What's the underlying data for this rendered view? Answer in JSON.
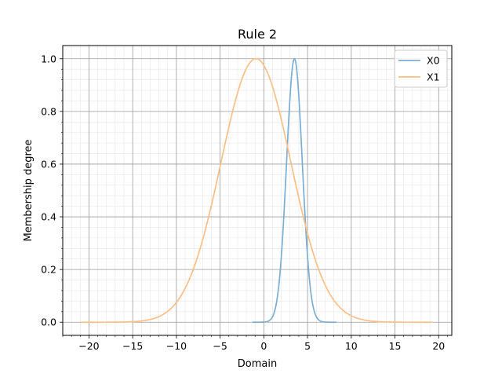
{
  "chart_data": {
    "type": "line",
    "title": "Rule 2",
    "xlabel": "Domain",
    "ylabel": "Membership degree",
    "xlim": [
      -23,
      21.5
    ],
    "ylim": [
      -0.05,
      1.05
    ],
    "xticks": [
      -20,
      -15,
      -10,
      -5,
      0,
      5,
      10,
      15,
      20
    ],
    "xtick_labels": [
      "−20",
      "−15",
      "−10",
      "−5",
      "0",
      "5",
      "10",
      "15",
      "20"
    ],
    "yticks": [
      0.0,
      0.2,
      0.4,
      0.6,
      0.8,
      1.0
    ],
    "ytick_labels": [
      "0.0",
      "0.2",
      "0.4",
      "0.6",
      "0.8",
      "1.0"
    ],
    "grid": true,
    "minor_grid": true,
    "legend_position": "top-right",
    "series": [
      {
        "name": "X0",
        "color": "#7aaed4",
        "shape": "gaussian",
        "center": 3.5,
        "sigma": 0.9,
        "x_range": [
          -1.3,
          8.3
        ]
      },
      {
        "name": "X1",
        "color": "#ffbe85",
        "shape": "gaussian",
        "center": -0.9,
        "sigma": 4.0,
        "x_range": [
          -21.0,
          19.2
        ]
      }
    ]
  }
}
